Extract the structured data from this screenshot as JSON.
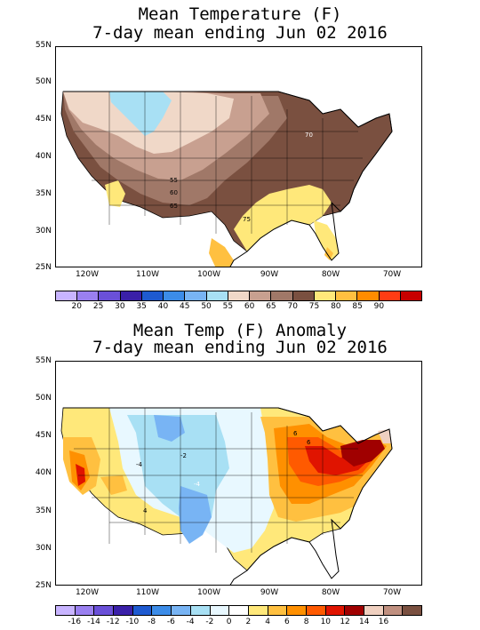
{
  "top_map": {
    "title_line1": "Mean Temperature (F)",
    "title_line2": "7-day mean ending Jun 02 2016",
    "lat_labels": [
      "55N",
      "50N",
      "45N",
      "40N",
      "35N",
      "30N",
      "25N"
    ],
    "lon_labels": [
      "120W",
      "110W",
      "100W",
      "90W",
      "80W",
      "70W"
    ],
    "contour_labels": [
      "70",
      "55",
      "60",
      "65",
      "75"
    ],
    "colorbar": {
      "colors": [
        "#c8b4ff",
        "#9a80f0",
        "#6a50d8",
        "#3a20a8",
        "#1e5ad0",
        "#3c8ce8",
        "#78b4f4",
        "#a8e0f4",
        "#f0d8c8",
        "#c8a090",
        "#a07868",
        "#7a5040",
        "#ffe87a",
        "#ffc040",
        "#ff8c00",
        "#ff3c14",
        "#c80000"
      ],
      "ticks": [
        "20",
        "25",
        "30",
        "35",
        "40",
        "45",
        "50",
        "55",
        "60",
        "65",
        "70",
        "75",
        "80",
        "85",
        "90"
      ]
    }
  },
  "bottom_map": {
    "title_line1": "Mean Temp (F) Anomaly",
    "title_line2": "7-day mean ending Jun 02 2016",
    "lat_labels": [
      "55N",
      "50N",
      "45N",
      "40N",
      "35N",
      "30N",
      "25N"
    ],
    "lon_labels": [
      "120W",
      "110W",
      "100W",
      "90W",
      "80W",
      "70W"
    ],
    "contour_labels": [
      "6",
      "6",
      "-2",
      "-4",
      "-4",
      "4"
    ],
    "colorbar": {
      "colors": [
        "#c8b4ff",
        "#9a80f0",
        "#6a50d8",
        "#3a20a8",
        "#1e5ad0",
        "#3c8ce8",
        "#78b4f4",
        "#a8e0f4",
        "#e8f8ff",
        "#ffffff",
        "#ffe87a",
        "#ffc040",
        "#ff9000",
        "#ff5a00",
        "#e01400",
        "#a00000",
        "#f0d0c0",
        "#c09080",
        "#7a5040"
      ],
      "ticks": [
        "-16",
        "-14",
        "-12",
        "-10",
        "-8",
        "-6",
        "-4",
        "-2",
        "0",
        "2",
        "4",
        "6",
        "8",
        "10",
        "12",
        "14",
        "16"
      ]
    }
  }
}
